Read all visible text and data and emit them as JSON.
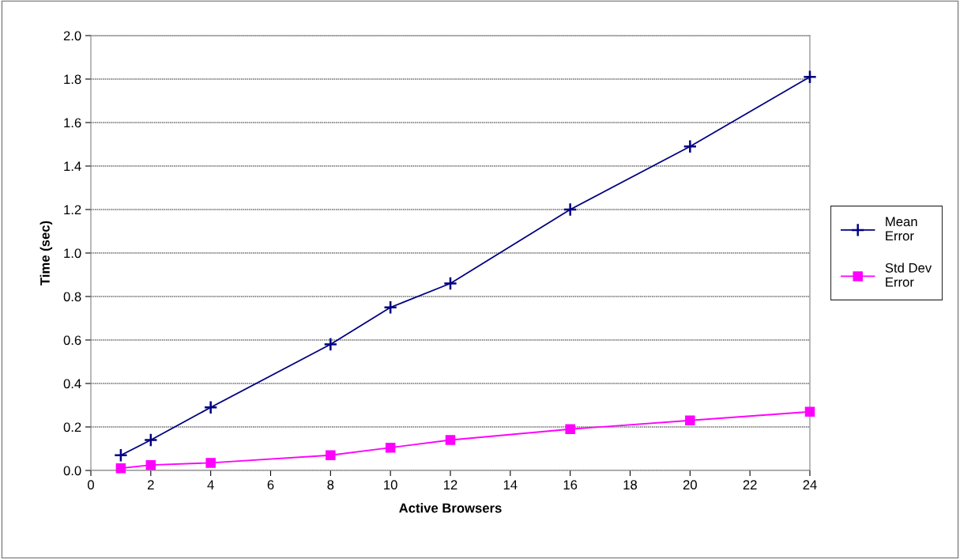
{
  "chart_data": {
    "type": "line",
    "xlabel": "Active Browsers",
    "ylabel": "Time (sec)",
    "x": [
      1,
      2,
      4,
      8,
      10,
      12,
      16,
      20,
      24
    ],
    "series": [
      {
        "name": "Mean Error",
        "color": "#000080",
        "marker": "cross",
        "values": [
          0.07,
          0.14,
          0.29,
          0.58,
          0.75,
          0.86,
          1.2,
          1.49,
          1.81
        ]
      },
      {
        "name": "Std Dev Error",
        "color": "#ff00ff",
        "marker": "square",
        "values": [
          0.01,
          0.025,
          0.035,
          0.07,
          0.105,
          0.14,
          0.19,
          0.23,
          0.27
        ]
      }
    ],
    "xlim": [
      0,
      24
    ],
    "xticks": [
      0,
      2,
      4,
      6,
      8,
      10,
      12,
      14,
      16,
      18,
      20,
      22,
      24
    ],
    "ylim": [
      0,
      2.0
    ],
    "yticks": [
      {
        "value": 0,
        "label": "0.0"
      },
      {
        "value": 0.2,
        "label": "0.2"
      },
      {
        "value": 0.4,
        "label": "0.4"
      },
      {
        "value": 0.6,
        "label": "0.6"
      },
      {
        "value": 0.8,
        "label": "0.8"
      },
      {
        "value": 1.0,
        "label": "1.0"
      },
      {
        "value": 1.2,
        "label": "1.2"
      },
      {
        "value": 1.4,
        "label": "1.4"
      },
      {
        "value": 1.6,
        "label": "1.6"
      },
      {
        "value": 1.8,
        "label": "1.8"
      },
      {
        "value": 2.0,
        "label": "2.0"
      }
    ],
    "grid": "y",
    "legend": "right"
  }
}
